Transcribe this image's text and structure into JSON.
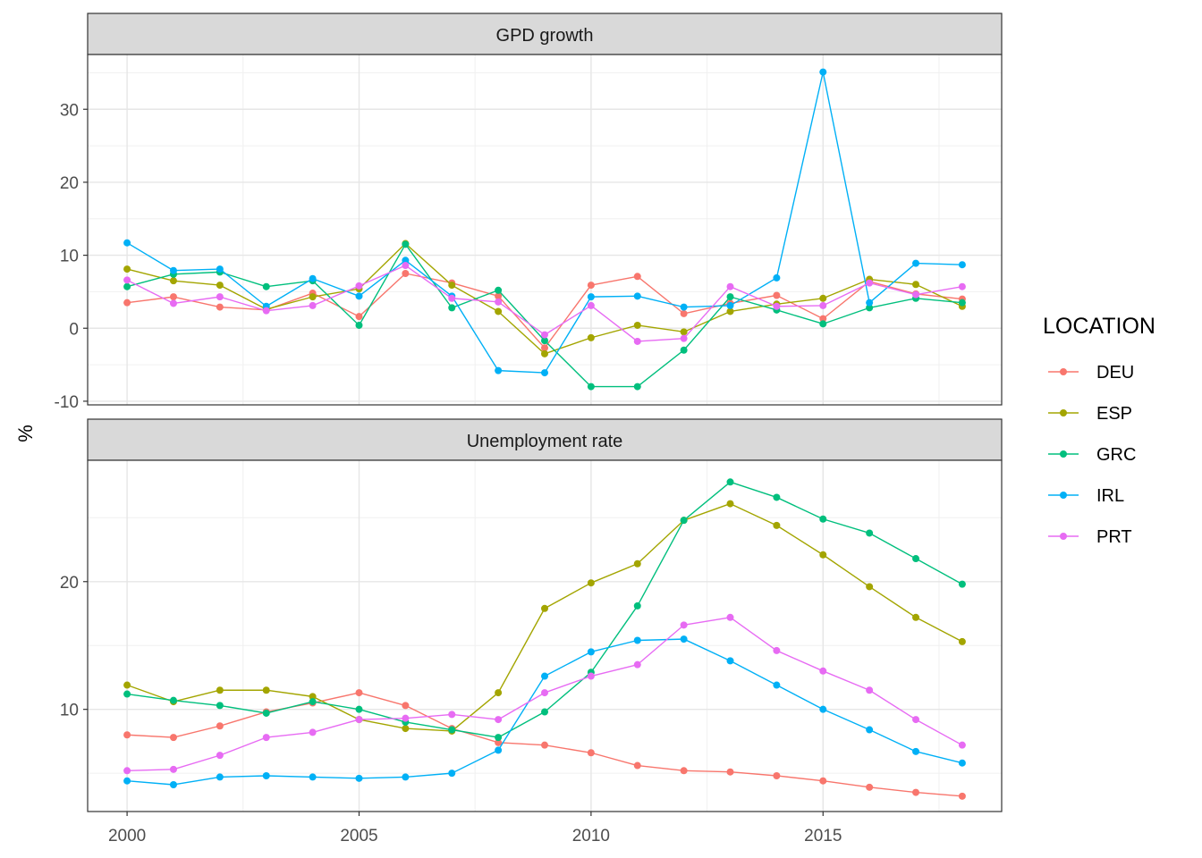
{
  "chart_data": {
    "type": "line",
    "ylabel": "%",
    "x": [
      2000,
      2001,
      2002,
      2003,
      2004,
      2005,
      2006,
      2007,
      2008,
      2009,
      2010,
      2011,
      2012,
      2013,
      2014,
      2015,
      2016,
      2017,
      2018
    ],
    "x_ticks": [
      "2000",
      "2005",
      "2010",
      "2015"
    ],
    "legend": {
      "title": "LOCATION",
      "position": "right"
    },
    "grid": true,
    "panels": [
      {
        "title": "GPD growth",
        "ylim": [
          -10.5,
          37.5
        ],
        "y_ticks": [
          "-10",
          "0",
          "10",
          "20",
          "30"
        ],
        "series": [
          {
            "name": "DEU",
            "color": "#F8766D",
            "values": [
              3.5,
              4.3,
              2.9,
              2.5,
              4.8,
              1.6,
              7.5,
              6.2,
              4.4,
              -2.7,
              5.9,
              7.1,
              2.0,
              3.4,
              4.5,
              1.3,
              6.4,
              4.7,
              4.0
            ]
          },
          {
            "name": "ESP",
            "color": "#A3A500",
            "values": [
              8.1,
              6.5,
              5.9,
              2.6,
              4.3,
              5.4,
              11.6,
              5.9,
              2.3,
              -3.5,
              -1.3,
              0.4,
              -0.5,
              2.3,
              3.3,
              4.1,
              6.7,
              6.0,
              3.0
            ]
          },
          {
            "name": "GRC",
            "color": "#00BF7D",
            "values": [
              5.7,
              7.4,
              7.7,
              5.7,
              6.5,
              0.4,
              11.5,
              2.8,
              5.2,
              -1.7,
              -8.0,
              -8.0,
              -3.0,
              4.3,
              2.5,
              0.6,
              2.8,
              4.1,
              3.5
            ]
          },
          {
            "name": "IRL",
            "color": "#00B0F6",
            "values": [
              11.7,
              7.9,
              8.1,
              3.0,
              6.8,
              4.4,
              9.3,
              4.4,
              -5.8,
              -6.1,
              4.3,
              4.4,
              2.9,
              3.1,
              6.9,
              35.1,
              3.5,
              8.9,
              8.7
            ]
          },
          {
            "name": "PRT",
            "color": "#E76BF3",
            "values": [
              6.6,
              3.4,
              4.3,
              2.4,
              3.1,
              5.8,
              8.6,
              4.1,
              3.6,
              -0.9,
              3.1,
              -1.8,
              -1.4,
              5.7,
              3.0,
              3.1,
              6.2,
              4.6,
              5.7
            ]
          }
        ]
      },
      {
        "title": "Unemployment rate",
        "ylim": [
          2.0,
          29.5
        ],
        "y_ticks": [
          "10",
          "20"
        ],
        "series": [
          {
            "name": "DEU",
            "color": "#F8766D",
            "values": [
              8.0,
              7.8,
              8.7,
              9.8,
              10.5,
              11.3,
              10.3,
              8.5,
              7.4,
              7.2,
              6.6,
              5.6,
              5.2,
              5.1,
              4.8,
              4.4,
              3.9,
              3.5,
              3.2
            ]
          },
          {
            "name": "ESP",
            "color": "#A3A500",
            "values": [
              11.9,
              10.6,
              11.5,
              11.5,
              11.0,
              9.2,
              8.5,
              8.3,
              11.3,
              17.9,
              19.9,
              21.4,
              24.8,
              26.1,
              24.4,
              22.1,
              19.6,
              17.2,
              15.3
            ]
          },
          {
            "name": "GRC",
            "color": "#00BF7D",
            "values": [
              11.2,
              10.7,
              10.3,
              9.7,
              10.6,
              10.0,
              9.0,
              8.4,
              7.8,
              9.8,
              12.9,
              18.1,
              24.8,
              27.8,
              26.6,
              24.9,
              23.8,
              21.8,
              19.8
            ]
          },
          {
            "name": "IRL",
            "color": "#00B0F6",
            "values": [
              4.4,
              4.1,
              4.7,
              4.8,
              4.7,
              4.6,
              4.7,
              5.0,
              6.8,
              12.6,
              14.5,
              15.4,
              15.5,
              13.8,
              11.9,
              10.0,
              8.4,
              6.7,
              5.8
            ]
          },
          {
            "name": "PRT",
            "color": "#E76BF3",
            "values": [
              5.2,
              5.3,
              6.4,
              7.8,
              8.2,
              9.2,
              9.3,
              9.6,
              9.2,
              11.3,
              12.6,
              13.5,
              16.6,
              17.2,
              14.6,
              13.0,
              11.5,
              9.2,
              7.2
            ]
          }
        ]
      }
    ]
  }
}
